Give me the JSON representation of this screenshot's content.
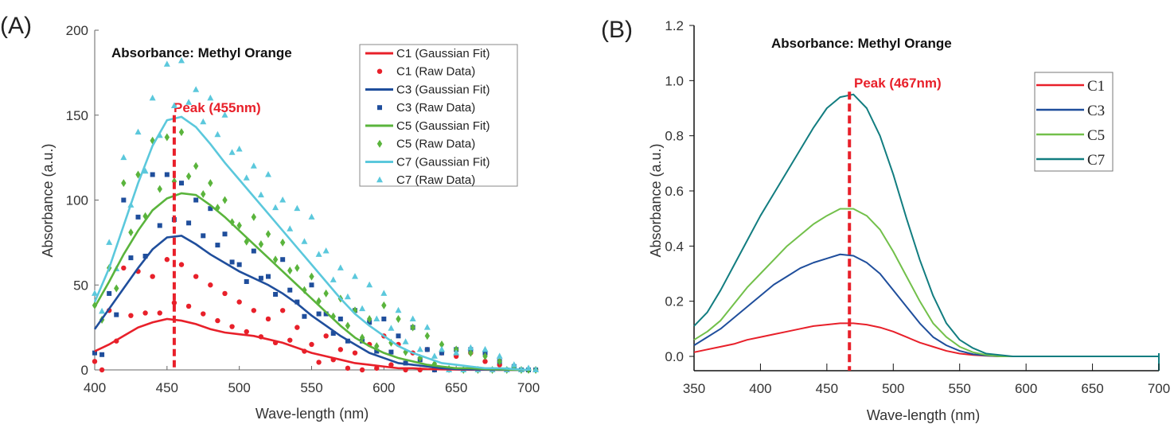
{
  "chart_data": [
    {
      "type": "line+scatter",
      "panel_label": "(A)",
      "title": "Absorbance: Methyl Orange",
      "xlabel": "Wave-length (nm)",
      "ylabel": "Absorbance (a.u.)",
      "xlim": [
        400,
        700
      ],
      "ylim": [
        0,
        200
      ],
      "xticks": [
        400,
        450,
        500,
        550,
        600,
        650,
        700
      ],
      "yticks": [
        0,
        50,
        100,
        150,
        200
      ],
      "annotation": {
        "text": "Peak (455nm)",
        "x": 455
      },
      "legend_position": "top-right",
      "x": [
        400,
        410,
        420,
        430,
        440,
        450,
        460,
        470,
        480,
        490,
        500,
        510,
        520,
        530,
        540,
        550,
        560,
        570,
        580,
        590,
        600,
        610,
        620,
        630,
        640,
        650,
        660,
        670,
        680,
        690,
        700
      ],
      "series": [
        {
          "name": "C1 (Gaussian Fit)",
          "raw_name": "C1 (Raw Data)",
          "color": "#e8202a",
          "marker": "circle",
          "fit": [
            11,
            15,
            20,
            25,
            28,
            30,
            29,
            27,
            24,
            22,
            21,
            20,
            18,
            16,
            13,
            10,
            8,
            6,
            4,
            3,
            2,
            1,
            1,
            0.5,
            0.3,
            0.2,
            0.1,
            0.1,
            0,
            0,
            0
          ],
          "raw": [
            5,
            35,
            60,
            58,
            55,
            65,
            62,
            55,
            50,
            45,
            40,
            35,
            30,
            35,
            25,
            15,
            20,
            12,
            10,
            15,
            20,
            15,
            10,
            12,
            10,
            8,
            10,
            5,
            3,
            2,
            0
          ]
        },
        {
          "name": "C3 (Gaussian Fit)",
          "raw_name": "C3 (Raw Data)",
          "color": "#1f4e9c",
          "marker": "square",
          "fit": [
            24,
            36,
            48,
            60,
            71,
            78,
            79,
            74,
            68,
            63,
            58,
            54,
            50,
            45,
            39,
            32,
            26,
            20,
            15,
            10,
            7,
            4,
            3,
            2,
            1,
            0.5,
            0.3,
            0.2,
            0.1,
            0,
            0
          ],
          "raw": [
            10,
            45,
            100,
            90,
            115,
            115,
            110,
            100,
            95,
            80,
            62,
            70,
            55,
            65,
            40,
            50,
            33,
            30,
            35,
            28,
            30,
            20,
            25,
            12,
            10,
            12,
            12,
            10,
            5,
            2,
            0
          ]
        },
        {
          "name": "C5 (Gaussian Fit)",
          "raw_name": "C5 (Raw Data)",
          "color": "#5ab43c",
          "marker": "diamond",
          "fit": [
            37,
            52,
            68,
            82,
            94,
            101,
            104,
            103,
            97,
            90,
            82,
            74,
            66,
            58,
            50,
            42,
            34,
            26,
            19,
            14,
            10,
            7,
            5,
            3,
            2,
            1,
            1,
            0.5,
            0.3,
            0.1,
            0
          ],
          "raw": [
            38,
            60,
            110,
            115,
            135,
            137,
            140,
            120,
            110,
            100,
            85,
            90,
            80,
            75,
            60,
            55,
            45,
            42,
            35,
            30,
            38,
            30,
            25,
            20,
            15,
            12,
            10,
            8,
            5,
            2,
            0
          ]
        },
        {
          "name": "C7 (Gaussian Fit)",
          "raw_name": "C7 (Raw Data)",
          "color": "#5bc8dc",
          "marker": "triangle",
          "fit": [
            40,
            60,
            85,
            110,
            132,
            147,
            149,
            143,
            133,
            122,
            112,
            102,
            92,
            82,
            72,
            62,
            52,
            42,
            33,
            26,
            20,
            14,
            10,
            7,
            4,
            3,
            2,
            1,
            1,
            0.5,
            0
          ],
          "raw": [
            45,
            75,
            125,
            140,
            160,
            180,
            182,
            165,
            160,
            150,
            130,
            120,
            115,
            100,
            95,
            90,
            70,
            60,
            55,
            50,
            45,
            35,
            30,
            25,
            12,
            10,
            13,
            12,
            8,
            3,
            1
          ]
        }
      ]
    },
    {
      "type": "line",
      "panel_label": "(B)",
      "title": "Absorbance: Methyl Orange",
      "xlabel": "Wave-length (nm)",
      "ylabel": "Absorbance (a.u.)",
      "xlim": [
        350,
        700
      ],
      "ylim": [
        -0.1,
        1.2
      ],
      "xticks": [
        350,
        400,
        450,
        500,
        550,
        600,
        650,
        700
      ],
      "yticks": [
        "0.0",
        "0.2",
        "0.4",
        "0.6",
        "0.8",
        "1.0",
        "1.2"
      ],
      "annotation": {
        "text": "Peak (467nm)",
        "x": 467
      },
      "legend_position": "top-right",
      "x": [
        350,
        360,
        370,
        380,
        390,
        400,
        410,
        420,
        430,
        440,
        450,
        460,
        470,
        480,
        490,
        500,
        510,
        520,
        530,
        540,
        550,
        560,
        570,
        580,
        590,
        600,
        620,
        640,
        660,
        680,
        700
      ],
      "series": [
        {
          "name": "C1",
          "color": "#e8202a",
          "values": [
            0.015,
            0.025,
            0.035,
            0.045,
            0.06,
            0.07,
            0.08,
            0.09,
            0.1,
            0.11,
            0.115,
            0.12,
            0.12,
            0.115,
            0.105,
            0.09,
            0.07,
            0.05,
            0.035,
            0.02,
            0.01,
            0.005,
            0.002,
            0,
            0,
            0,
            0,
            0,
            0,
            0,
            0
          ]
        },
        {
          "name": "C3",
          "color": "#1f4e9c",
          "values": [
            0.04,
            0.07,
            0.1,
            0.14,
            0.18,
            0.22,
            0.26,
            0.29,
            0.32,
            0.34,
            0.355,
            0.37,
            0.365,
            0.34,
            0.3,
            0.24,
            0.18,
            0.12,
            0.07,
            0.04,
            0.02,
            0.008,
            0.003,
            0,
            0,
            0,
            0,
            0,
            0,
            0,
            0
          ]
        },
        {
          "name": "C5",
          "color": "#72c04a",
          "values": [
            0.06,
            0.09,
            0.13,
            0.19,
            0.25,
            0.3,
            0.35,
            0.4,
            0.44,
            0.48,
            0.51,
            0.535,
            0.535,
            0.51,
            0.46,
            0.38,
            0.29,
            0.2,
            0.12,
            0.07,
            0.035,
            0.015,
            0.005,
            0,
            0,
            0,
            0,
            0,
            0,
            0,
            0
          ]
        },
        {
          "name": "C7",
          "color": "#127d80",
          "values": [
            0.11,
            0.16,
            0.24,
            0.33,
            0.42,
            0.51,
            0.59,
            0.67,
            0.75,
            0.83,
            0.9,
            0.94,
            0.95,
            0.9,
            0.8,
            0.66,
            0.5,
            0.35,
            0.22,
            0.12,
            0.06,
            0.03,
            0.01,
            0.005,
            0,
            0,
            0,
            0,
            0,
            0,
            0
          ]
        }
      ]
    }
  ]
}
